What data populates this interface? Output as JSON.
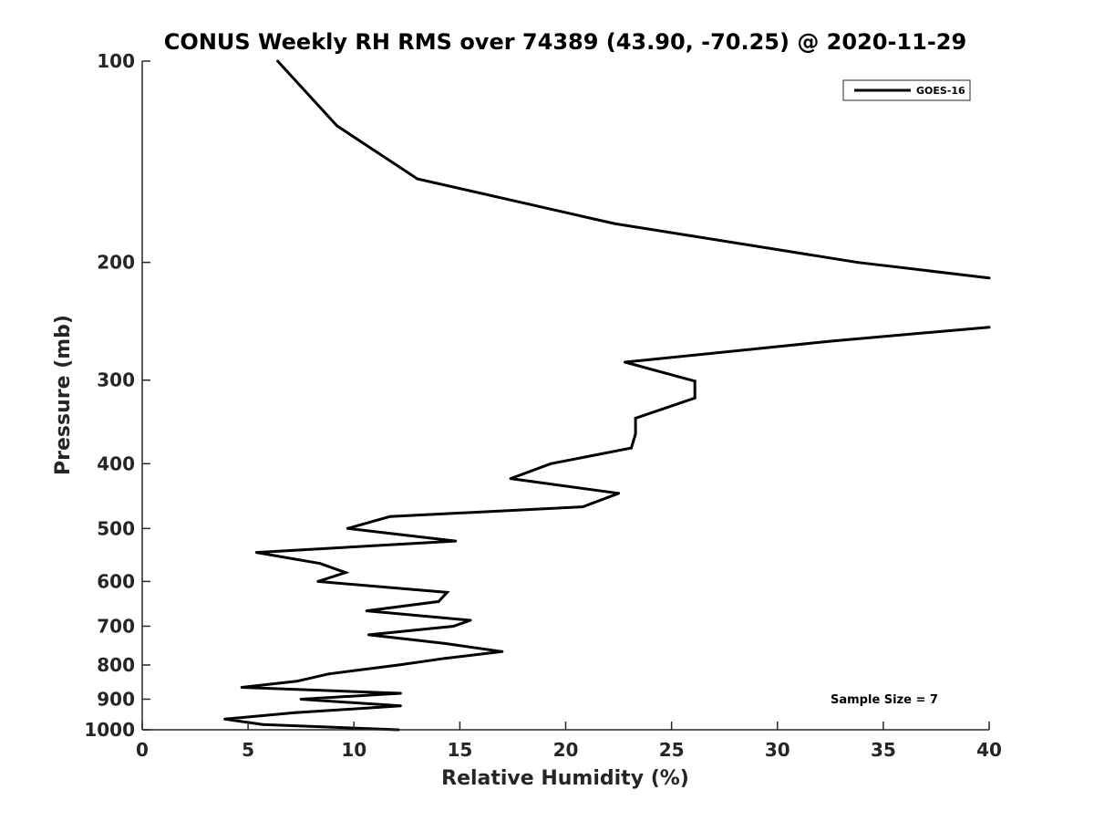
{
  "chart_data": {
    "type": "line",
    "title": "CONUS Weekly RH RMS over 74389 (43.90, -70.25) @ 2020-11-29",
    "xlabel": "Relative Humidity (%)",
    "ylabel": "Pressure (mb)",
    "xlim": [
      0,
      40
    ],
    "ylim": [
      100,
      1000
    ],
    "yscale": "log",
    "yreversed": true,
    "xticks": [
      0,
      5,
      10,
      15,
      20,
      25,
      30,
      35,
      40
    ],
    "yticks": [
      100,
      200,
      300,
      400,
      500,
      600,
      700,
      800,
      900,
      1000
    ],
    "grid": false,
    "legend_position": "top-right",
    "series": [
      {
        "name": "GOES-16",
        "color": "#000000",
        "segments": [
          [
            {
              "x": 6.4,
              "y": 100
            },
            {
              "x": 9.2,
              "y": 125
            },
            {
              "x": 13.0,
              "y": 150
            },
            {
              "x": 22.3,
              "y": 175
            },
            {
              "x": 33.8,
              "y": 200
            },
            {
              "x": 40.0,
              "y": 211
            }
          ],
          [
            {
              "x": 40.0,
              "y": 250
            },
            {
              "x": 32.7,
              "y": 262
            },
            {
              "x": 22.8,
              "y": 282
            },
            {
              "x": 26.1,
              "y": 301
            },
            {
              "x": 26.1,
              "y": 319
            },
            {
              "x": 23.3,
              "y": 342
            },
            {
              "x": 23.3,
              "y": 361
            },
            {
              "x": 23.1,
              "y": 379
            },
            {
              "x": 19.3,
              "y": 400
            },
            {
              "x": 17.4,
              "y": 421
            },
            {
              "x": 22.5,
              "y": 443
            },
            {
              "x": 20.8,
              "y": 464
            },
            {
              "x": 11.7,
              "y": 480
            },
            {
              "x": 9.7,
              "y": 500
            },
            {
              "x": 14.8,
              "y": 522
            },
            {
              "x": 5.4,
              "y": 543
            },
            {
              "x": 8.4,
              "y": 564
            },
            {
              "x": 9.6,
              "y": 582
            },
            {
              "x": 8.3,
              "y": 600
            },
            {
              "x": 14.4,
              "y": 623
            },
            {
              "x": 14.0,
              "y": 643
            },
            {
              "x": 10.6,
              "y": 664
            },
            {
              "x": 15.5,
              "y": 686
            },
            {
              "x": 14.7,
              "y": 700
            },
            {
              "x": 10.7,
              "y": 721
            },
            {
              "x": 14.3,
              "y": 743
            },
            {
              "x": 17.0,
              "y": 764
            },
            {
              "x": 14.3,
              "y": 782
            },
            {
              "x": 12.1,
              "y": 800
            },
            {
              "x": 8.8,
              "y": 825
            },
            {
              "x": 7.3,
              "y": 846
            },
            {
              "x": 4.7,
              "y": 864
            },
            {
              "x": 12.2,
              "y": 882
            },
            {
              "x": 7.5,
              "y": 900
            },
            {
              "x": 12.2,
              "y": 921
            },
            {
              "x": 7.2,
              "y": 943
            },
            {
              "x": 3.9,
              "y": 964
            },
            {
              "x": 5.7,
              "y": 982
            },
            {
              "x": 12.1,
              "y": 1000
            }
          ]
        ]
      }
    ],
    "annotations": [
      "Sample Size = 7"
    ]
  }
}
